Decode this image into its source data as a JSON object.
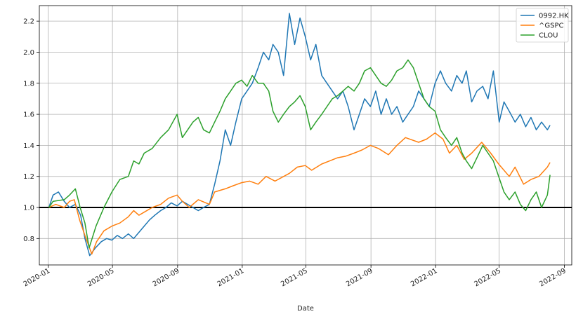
{
  "chart_data": {
    "type": "line",
    "title": "",
    "xlabel": "Date",
    "ylabel": "",
    "x_range": [
      "2019-12-15",
      "2022-09-15"
    ],
    "ylim": [
      0.63,
      2.3
    ],
    "grid": true,
    "legend_position": "top-right",
    "x_ticks": [
      "2020-01",
      "2020-05",
      "2020-09",
      "2021-01",
      "2021-05",
      "2021-09",
      "2022-01",
      "2022-05",
      "2022-09"
    ],
    "y_ticks": [
      0.8,
      1.0,
      1.2,
      1.4,
      1.6,
      1.8,
      2.0,
      2.2
    ],
    "reference_line": {
      "y": 1.0,
      "color": "#000000"
    },
    "series": [
      {
        "name": "0992.HK",
        "color": "#1f77b4",
        "points": [
          [
            "2020-01-02",
            1.0
          ],
          [
            "2020-01-10",
            1.08
          ],
          [
            "2020-01-20",
            1.1
          ],
          [
            "2020-01-31",
            1.04
          ],
          [
            "2020-02-10",
            1.0
          ],
          [
            "2020-02-21",
            1.02
          ],
          [
            "2020-03-02",
            0.95
          ],
          [
            "2020-03-10",
            0.8
          ],
          [
            "2020-03-19",
            0.69
          ],
          [
            "2020-03-30",
            0.74
          ],
          [
            "2020-04-10",
            0.78
          ],
          [
            "2020-04-20",
            0.8
          ],
          [
            "2020-04-30",
            0.79
          ],
          [
            "2020-05-10",
            0.82
          ],
          [
            "2020-05-20",
            0.8
          ],
          [
            "2020-05-31",
            0.83
          ],
          [
            "2020-06-10",
            0.8
          ],
          [
            "2020-06-20",
            0.84
          ],
          [
            "2020-06-30",
            0.88
          ],
          [
            "2020-07-10",
            0.92
          ],
          [
            "2020-07-20",
            0.95
          ],
          [
            "2020-07-31",
            0.98
          ],
          [
            "2020-08-10",
            1.0
          ],
          [
            "2020-08-20",
            1.03
          ],
          [
            "2020-08-31",
            1.01
          ],
          [
            "2020-09-10",
            1.04
          ],
          [
            "2020-09-20",
            1.02
          ],
          [
            "2020-09-30",
            1.0
          ],
          [
            "2020-10-10",
            0.98
          ],
          [
            "2020-10-20",
            1.0
          ],
          [
            "2020-10-31",
            1.02
          ],
          [
            "2020-11-10",
            1.15
          ],
          [
            "2020-11-20",
            1.3
          ],
          [
            "2020-11-30",
            1.5
          ],
          [
            "2020-12-10",
            1.4
          ],
          [
            "2020-12-20",
            1.55
          ],
          [
            "2020-12-31",
            1.7
          ],
          [
            "2021-01-10",
            1.75
          ],
          [
            "2021-01-20",
            1.8
          ],
          [
            "2021-01-31",
            1.9
          ],
          [
            "2021-02-10",
            2.0
          ],
          [
            "2021-02-20",
            1.95
          ],
          [
            "2021-02-28",
            2.05
          ],
          [
            "2021-03-10",
            2.0
          ],
          [
            "2021-03-20",
            1.85
          ],
          [
            "2021-03-31",
            2.25
          ],
          [
            "2021-04-10",
            2.05
          ],
          [
            "2021-04-20",
            2.22
          ],
          [
            "2021-04-30",
            2.1
          ],
          [
            "2021-05-10",
            1.95
          ],
          [
            "2021-05-20",
            2.05
          ],
          [
            "2021-05-31",
            1.85
          ],
          [
            "2021-06-10",
            1.8
          ],
          [
            "2021-06-20",
            1.75
          ],
          [
            "2021-06-30",
            1.7
          ],
          [
            "2021-07-10",
            1.75
          ],
          [
            "2021-07-20",
            1.65
          ],
          [
            "2021-07-31",
            1.5
          ],
          [
            "2021-08-10",
            1.6
          ],
          [
            "2021-08-20",
            1.7
          ],
          [
            "2021-08-31",
            1.65
          ],
          [
            "2021-09-10",
            1.75
          ],
          [
            "2021-09-20",
            1.6
          ],
          [
            "2021-09-30",
            1.7
          ],
          [
            "2021-10-10",
            1.6
          ],
          [
            "2021-10-20",
            1.65
          ],
          [
            "2021-10-31",
            1.55
          ],
          [
            "2021-11-10",
            1.6
          ],
          [
            "2021-11-20",
            1.65
          ],
          [
            "2021-11-30",
            1.75
          ],
          [
            "2021-12-10",
            1.7
          ],
          [
            "2021-12-20",
            1.65
          ],
          [
            "2021-12-31",
            1.8
          ],
          [
            "2022-01-10",
            1.88
          ],
          [
            "2022-01-20",
            1.8
          ],
          [
            "2022-01-31",
            1.75
          ],
          [
            "2022-02-10",
            1.85
          ],
          [
            "2022-02-20",
            1.8
          ],
          [
            "2022-02-28",
            1.88
          ],
          [
            "2022-03-10",
            1.68
          ],
          [
            "2022-03-20",
            1.75
          ],
          [
            "2022-03-31",
            1.78
          ],
          [
            "2022-04-10",
            1.7
          ],
          [
            "2022-04-20",
            1.88
          ],
          [
            "2022-05-01",
            1.55
          ],
          [
            "2022-05-10",
            1.68
          ],
          [
            "2022-05-20",
            1.62
          ],
          [
            "2022-05-31",
            1.55
          ],
          [
            "2022-06-10",
            1.6
          ],
          [
            "2022-06-20",
            1.52
          ],
          [
            "2022-06-30",
            1.58
          ],
          [
            "2022-07-10",
            1.5
          ],
          [
            "2022-07-20",
            1.55
          ],
          [
            "2022-07-31",
            1.5
          ],
          [
            "2022-08-05",
            1.53
          ]
        ]
      },
      {
        "name": "^GSPC",
        "color": "#ff7f0e",
        "points": [
          [
            "2020-01-02",
            1.0
          ],
          [
            "2020-01-15",
            1.02
          ],
          [
            "2020-01-31",
            1.0
          ],
          [
            "2020-02-10",
            1.04
          ],
          [
            "2020-02-19",
            1.05
          ],
          [
            "2020-02-29",
            0.92
          ],
          [
            "2020-03-10",
            0.82
          ],
          [
            "2020-03-23",
            0.7
          ],
          [
            "2020-04-01",
            0.78
          ],
          [
            "2020-04-15",
            0.85
          ],
          [
            "2020-04-30",
            0.88
          ],
          [
            "2020-05-15",
            0.9
          ],
          [
            "2020-05-31",
            0.94
          ],
          [
            "2020-06-10",
            0.98
          ],
          [
            "2020-06-20",
            0.95
          ],
          [
            "2020-06-30",
            0.97
          ],
          [
            "2020-07-15",
            1.0
          ],
          [
            "2020-07-31",
            1.02
          ],
          [
            "2020-08-15",
            1.06
          ],
          [
            "2020-08-31",
            1.08
          ],
          [
            "2020-09-10",
            1.04
          ],
          [
            "2020-09-23",
            1.0
          ],
          [
            "2020-10-10",
            1.05
          ],
          [
            "2020-10-31",
            1.02
          ],
          [
            "2020-11-10",
            1.1
          ],
          [
            "2020-11-30",
            1.12
          ],
          [
            "2020-12-15",
            1.14
          ],
          [
            "2020-12-31",
            1.16
          ],
          [
            "2021-01-15",
            1.17
          ],
          [
            "2021-01-31",
            1.15
          ],
          [
            "2021-02-15",
            1.2
          ],
          [
            "2021-03-04",
            1.17
          ],
          [
            "2021-03-31",
            1.22
          ],
          [
            "2021-04-15",
            1.26
          ],
          [
            "2021-04-30",
            1.27
          ],
          [
            "2021-05-12",
            1.24
          ],
          [
            "2021-05-31",
            1.28
          ],
          [
            "2021-06-15",
            1.3
          ],
          [
            "2021-06-30",
            1.32
          ],
          [
            "2021-07-15",
            1.33
          ],
          [
            "2021-07-31",
            1.35
          ],
          [
            "2021-08-15",
            1.37
          ],
          [
            "2021-08-31",
            1.4
          ],
          [
            "2021-09-15",
            1.38
          ],
          [
            "2021-10-04",
            1.34
          ],
          [
            "2021-10-20",
            1.4
          ],
          [
            "2021-11-05",
            1.45
          ],
          [
            "2021-11-30",
            1.42
          ],
          [
            "2021-12-15",
            1.44
          ],
          [
            "2021-12-31",
            1.48
          ],
          [
            "2022-01-15",
            1.44
          ],
          [
            "2022-01-27",
            1.35
          ],
          [
            "2022-02-10",
            1.4
          ],
          [
            "2022-02-24",
            1.31
          ],
          [
            "2022-03-10",
            1.35
          ],
          [
            "2022-03-29",
            1.42
          ],
          [
            "2022-04-15",
            1.35
          ],
          [
            "2022-04-30",
            1.28
          ],
          [
            "2022-05-20",
            1.2
          ],
          [
            "2022-05-31",
            1.26
          ],
          [
            "2022-06-16",
            1.15
          ],
          [
            "2022-06-30",
            1.18
          ],
          [
            "2022-07-15",
            1.2
          ],
          [
            "2022-07-31",
            1.26
          ],
          [
            "2022-08-05",
            1.29
          ]
        ]
      },
      {
        "name": "CLOU",
        "color": "#2ca02c",
        "points": [
          [
            "2020-01-02",
            1.0
          ],
          [
            "2020-01-10",
            1.04
          ],
          [
            "2020-01-31",
            1.05
          ],
          [
            "2020-02-10",
            1.08
          ],
          [
            "2020-02-21",
            1.12
          ],
          [
            "2020-03-01",
            1.0
          ],
          [
            "2020-03-10",
            0.9
          ],
          [
            "2020-03-18",
            0.74
          ],
          [
            "2020-03-31",
            0.88
          ],
          [
            "2020-04-15",
            1.0
          ],
          [
            "2020-04-30",
            1.1
          ],
          [
            "2020-05-15",
            1.18
          ],
          [
            "2020-05-31",
            1.2
          ],
          [
            "2020-06-10",
            1.3
          ],
          [
            "2020-06-20",
            1.28
          ],
          [
            "2020-06-30",
            1.35
          ],
          [
            "2020-07-15",
            1.38
          ],
          [
            "2020-07-31",
            1.45
          ],
          [
            "2020-08-15",
            1.5
          ],
          [
            "2020-08-31",
            1.6
          ],
          [
            "2020-09-10",
            1.45
          ],
          [
            "2020-09-20",
            1.5
          ],
          [
            "2020-09-30",
            1.55
          ],
          [
            "2020-10-10",
            1.58
          ],
          [
            "2020-10-20",
            1.5
          ],
          [
            "2020-10-31",
            1.48
          ],
          [
            "2020-11-10",
            1.55
          ],
          [
            "2020-11-20",
            1.62
          ],
          [
            "2020-11-30",
            1.7
          ],
          [
            "2020-12-10",
            1.75
          ],
          [
            "2020-12-20",
            1.8
          ],
          [
            "2020-12-31",
            1.82
          ],
          [
            "2021-01-10",
            1.78
          ],
          [
            "2021-01-20",
            1.85
          ],
          [
            "2021-01-31",
            1.8
          ],
          [
            "2021-02-10",
            1.8
          ],
          [
            "2021-02-20",
            1.75
          ],
          [
            "2021-02-28",
            1.62
          ],
          [
            "2021-03-10",
            1.55
          ],
          [
            "2021-03-20",
            1.6
          ],
          [
            "2021-03-31",
            1.65
          ],
          [
            "2021-04-10",
            1.68
          ],
          [
            "2021-04-20",
            1.72
          ],
          [
            "2021-04-30",
            1.65
          ],
          [
            "2021-05-10",
            1.5
          ],
          [
            "2021-05-20",
            1.55
          ],
          [
            "2021-05-31",
            1.6
          ],
          [
            "2021-06-10",
            1.65
          ],
          [
            "2021-06-20",
            1.7
          ],
          [
            "2021-06-30",
            1.72
          ],
          [
            "2021-07-10",
            1.75
          ],
          [
            "2021-07-20",
            1.78
          ],
          [
            "2021-07-31",
            1.75
          ],
          [
            "2021-08-10",
            1.8
          ],
          [
            "2021-08-20",
            1.88
          ],
          [
            "2021-08-31",
            1.9
          ],
          [
            "2021-09-10",
            1.85
          ],
          [
            "2021-09-20",
            1.8
          ],
          [
            "2021-09-30",
            1.78
          ],
          [
            "2021-10-10",
            1.82
          ],
          [
            "2021-10-20",
            1.88
          ],
          [
            "2021-10-31",
            1.9
          ],
          [
            "2021-11-10",
            1.95
          ],
          [
            "2021-11-20",
            1.9
          ],
          [
            "2021-11-30",
            1.8
          ],
          [
            "2021-12-10",
            1.7
          ],
          [
            "2021-12-20",
            1.65
          ],
          [
            "2021-12-31",
            1.62
          ],
          [
            "2022-01-10",
            1.5
          ],
          [
            "2022-01-20",
            1.45
          ],
          [
            "2022-01-31",
            1.4
          ],
          [
            "2022-02-10",
            1.45
          ],
          [
            "2022-02-20",
            1.35
          ],
          [
            "2022-02-28",
            1.3
          ],
          [
            "2022-03-10",
            1.25
          ],
          [
            "2022-03-20",
            1.32
          ],
          [
            "2022-03-31",
            1.4
          ],
          [
            "2022-04-10",
            1.35
          ],
          [
            "2022-04-20",
            1.3
          ],
          [
            "2022-04-30",
            1.2
          ],
          [
            "2022-05-10",
            1.1
          ],
          [
            "2022-05-20",
            1.05
          ],
          [
            "2022-05-31",
            1.1
          ],
          [
            "2022-06-10",
            1.02
          ],
          [
            "2022-06-20",
            0.98
          ],
          [
            "2022-06-30",
            1.05
          ],
          [
            "2022-07-10",
            1.1
          ],
          [
            "2022-07-20",
            1.0
          ],
          [
            "2022-07-31",
            1.08
          ],
          [
            "2022-08-05",
            1.21
          ]
        ]
      }
    ]
  }
}
